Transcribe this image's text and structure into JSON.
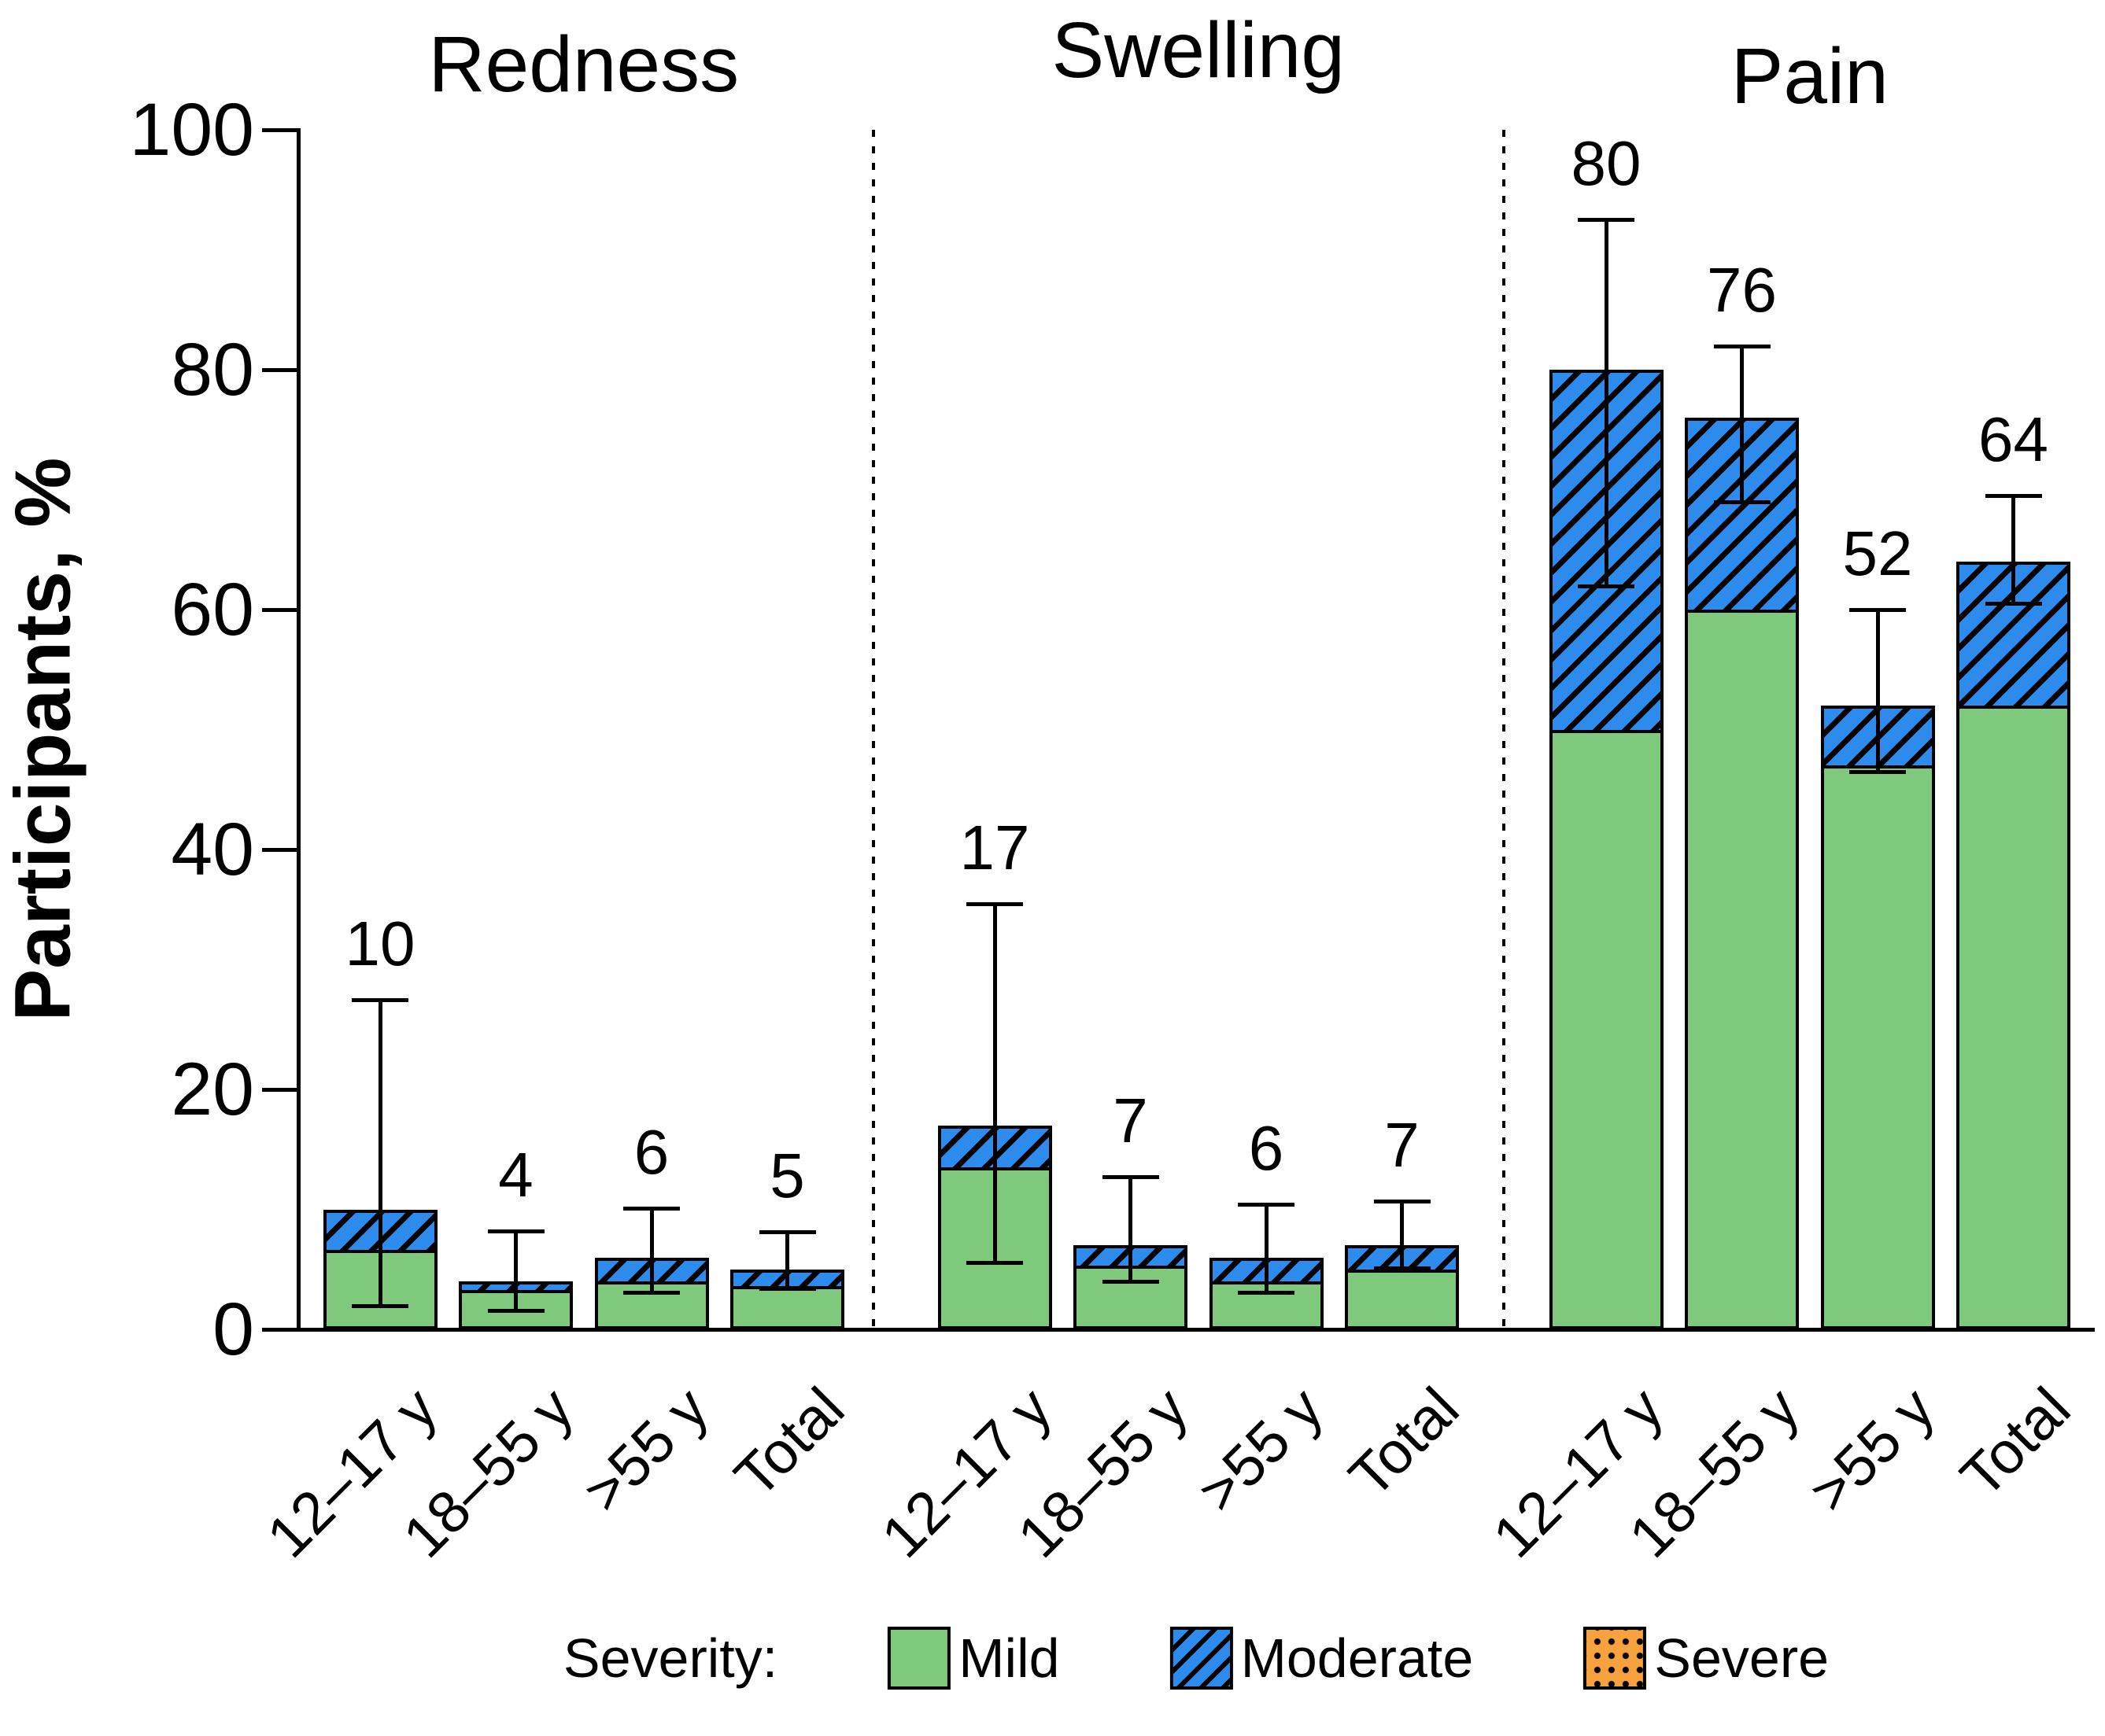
{
  "chart_data": {
    "type": "bar",
    "stacked": true,
    "title": "",
    "ylabel": "Participants, %",
    "ylim": [
      0,
      100
    ],
    "yticks": [
      0,
      20,
      40,
      60,
      80,
      100
    ],
    "grid": false,
    "legend_position": "bottom",
    "legend_title": "Severity:",
    "series_names": [
      "Mild",
      "Moderate",
      "Severe"
    ],
    "categories": [
      "12–17 y",
      "18–55 y",
      ">55 y",
      "Total"
    ],
    "panels": [
      {
        "title": "Redness",
        "bars": [
          {
            "category": "12–17 y",
            "total_label": "10",
            "mild": 6.6,
            "moderate": 3.4,
            "severe": 0,
            "ci_low": 2.0,
            "ci_high": 27.5
          },
          {
            "category": "18–55 y",
            "total_label": "4",
            "mild": 3.3,
            "moderate": 0.7,
            "severe": 0,
            "ci_low": 1.6,
            "ci_high": 8.2
          },
          {
            "category": ">55 y",
            "total_label": "6",
            "mild": 4.0,
            "moderate": 2.0,
            "severe": 0,
            "ci_low": 3.1,
            "ci_high": 10.1
          },
          {
            "category": "Total",
            "total_label": "5",
            "mild": 3.6,
            "moderate": 1.4,
            "severe": 0,
            "ci_low": 3.4,
            "ci_high": 8.1
          }
        ]
      },
      {
        "title": "Swelling",
        "bars": [
          {
            "category": "12–17 y",
            "total_label": "17",
            "mild": 13.5,
            "moderate": 3.5,
            "severe": 0,
            "ci_low": 5.6,
            "ci_high": 35.5
          },
          {
            "category": "18–55 y",
            "total_label": "7",
            "mild": 5.3,
            "moderate": 1.7,
            "severe": 0,
            "ci_low": 4.0,
            "ci_high": 12.7
          },
          {
            "category": ">55 y",
            "total_label": "6",
            "mild": 4.0,
            "moderate": 2.0,
            "severe": 0,
            "ci_low": 3.1,
            "ci_high": 10.4
          },
          {
            "category": "Total",
            "total_label": "7",
            "mild": 5.0,
            "moderate": 2.0,
            "severe": 0,
            "ci_low": 5.1,
            "ci_high": 10.7
          }
        ]
      },
      {
        "title": "Pain",
        "bars": [
          {
            "category": "12–17 y",
            "total_label": "80",
            "mild": 50,
            "moderate": 30,
            "severe": 0,
            "ci_low": 62.0,
            "ci_high": 92.5
          },
          {
            "category": "18–55 y",
            "total_label": "76",
            "mild": 60,
            "moderate": 16,
            "severe": 0,
            "ci_low": 69.0,
            "ci_high": 82.0
          },
          {
            "category": ">55 y",
            "total_label": "52",
            "mild": 47,
            "moderate": 5,
            "severe": 0,
            "ci_low": 46.5,
            "ci_high": 60.0
          },
          {
            "category": "Total",
            "total_label": "64",
            "mild": 52,
            "moderate": 12,
            "severe": 0,
            "ci_low": 60.5,
            "ci_high": 69.5
          }
        ]
      }
    ],
    "colors": {
      "mild": "#7EC97B",
      "moderate": "#2E8BEE",
      "severe": "#F7A23F",
      "hatch": "#000000",
      "axis": "#000000",
      "background": "#FFFFFF"
    }
  },
  "legend": {
    "label": "Severity:",
    "entries": [
      {
        "name": "Mild",
        "swatch": "mild-solid-green"
      },
      {
        "name": "Moderate",
        "swatch": "moderate-hatched-blue"
      },
      {
        "name": "Severe",
        "swatch": "severe-dotted-orange"
      }
    ]
  }
}
